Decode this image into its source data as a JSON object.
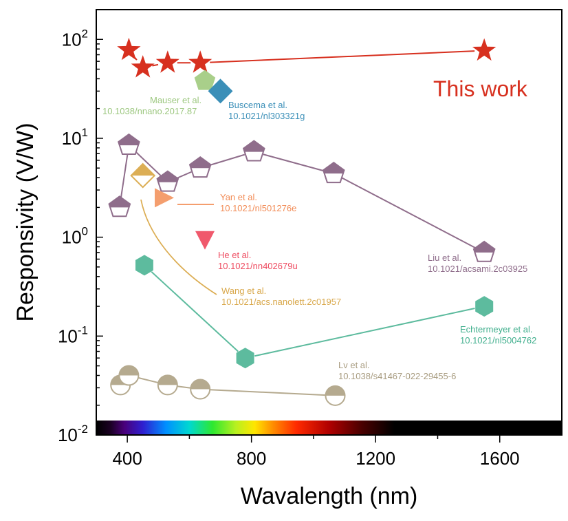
{
  "chart_data": {
    "type": "scatter",
    "title": "",
    "xlabel": "Wavalength (nm)",
    "ylabel": "Responsivity (V/W)",
    "xlim": [
      300,
      1800
    ],
    "ylim": [
      0.01,
      200
    ],
    "yscale": "log",
    "x_ticks": [
      400,
      800,
      1200,
      1600
    ],
    "x_tick_labels": [
      "400",
      "800",
      "1200",
      "1600"
    ],
    "y_tick_labels": [
      {
        "base": "10",
        "exp": "-2",
        "value": 0.01
      },
      {
        "base": "10",
        "exp": "-1",
        "value": 0.1
      },
      {
        "base": "10",
        "exp": "0",
        "value": 1
      },
      {
        "base": "10",
        "exp": "1",
        "value": 10
      },
      {
        "base": "10",
        "exp": "2",
        "value": 100
      }
    ],
    "series": [
      {
        "name": "This work",
        "marker": "star",
        "color": "#d7301f",
        "connected": true,
        "label_lines": [
          "This work"
        ],
        "points": [
          {
            "x": 405,
            "y": 78
          },
          {
            "x": 450,
            "y": 52
          },
          {
            "x": 530,
            "y": 58
          },
          {
            "x": 635,
            "y": 58
          },
          {
            "x": 1550,
            "y": 77
          }
        ]
      },
      {
        "name": "Mauser et al.",
        "marker": "pentagon",
        "color": "#a9cf8a",
        "connected": false,
        "label_lines": [
          "Mauser et al.",
          "10.1038/nnano.2017.87"
        ],
        "points": [
          {
            "x": 650,
            "y": 38
          }
        ]
      },
      {
        "name": "Buscema et al.",
        "marker": "diamond",
        "color": "#3b8fb8",
        "connected": false,
        "label_lines": [
          "Buscema et al.",
          "10.1021/nl303321g"
        ],
        "points": [
          {
            "x": 700,
            "y": 30
          }
        ]
      },
      {
        "name": "Liu et al.",
        "marker": "half-pentagon",
        "color": "#8f6d8b",
        "connected": true,
        "label_lines": [
          "Liu et al.",
          "10.1021/acsami.2c03925"
        ],
        "points": [
          {
            "x": 375,
            "y": 2.0
          },
          {
            "x": 405,
            "y": 8.5
          },
          {
            "x": 530,
            "y": 3.6
          },
          {
            "x": 635,
            "y": 5.0
          },
          {
            "x": 808,
            "y": 7.3
          },
          {
            "x": 1065,
            "y": 4.4
          },
          {
            "x": 1550,
            "y": 0.7
          }
        ]
      },
      {
        "name": "Wang et al.",
        "marker": "half-diamond",
        "color": "#dcae55",
        "connected": false,
        "label_lines": [
          "Wang et al.",
          "10.1021/acs.nanolett.2c01957"
        ],
        "points": [
          {
            "x": 450,
            "y": 4.2
          }
        ]
      },
      {
        "name": "Yan et al.",
        "marker": "triangle-right",
        "color": "#f49e6e",
        "connected": false,
        "label_lines": [
          "Yan et al.",
          "10.1021/nl501276e"
        ],
        "points": [
          {
            "x": 515,
            "y": 2.5
          }
        ]
      },
      {
        "name": "He et al.",
        "marker": "triangle-down",
        "color": "#f0596c",
        "connected": false,
        "label_lines": [
          "He et al.",
          "10.1021/nn402679u"
        ],
        "points": [
          {
            "x": 650,
            "y": 0.95
          }
        ]
      },
      {
        "name": "Echtermeyer et al.",
        "marker": "hexagon",
        "color": "#5dbb9e",
        "connected": true,
        "label_lines": [
          "Echtermeyer et al.",
          "10.1021/nl5004762"
        ],
        "points": [
          {
            "x": 455,
            "y": 0.52
          },
          {
            "x": 780,
            "y": 0.06
          },
          {
            "x": 1550,
            "y": 0.2
          }
        ]
      },
      {
        "name": "Lv et al.",
        "marker": "half-circle",
        "color": "#b5aa8f",
        "connected": true,
        "label_lines": [
          "Lv et al.",
          "10.1038/s41467-022-29455-6"
        ],
        "points": [
          {
            "x": 378,
            "y": 0.032
          },
          {
            "x": 405,
            "y": 0.04
          },
          {
            "x": 530,
            "y": 0.032
          },
          {
            "x": 635,
            "y": 0.029
          },
          {
            "x": 1070,
            "y": 0.025
          }
        ]
      }
    ]
  }
}
